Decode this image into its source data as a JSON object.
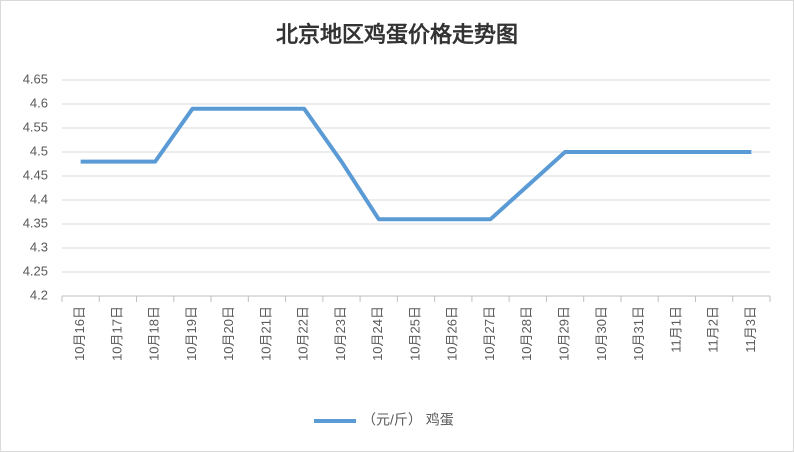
{
  "chart_data": {
    "type": "line",
    "title": "北京地区鸡蛋价格走势图",
    "categories": [
      "10月16日",
      "10月17日",
      "10月18日",
      "10月19日",
      "10月20日",
      "10月21日",
      "10月22日",
      "10月23日",
      "10月24日",
      "10月25日",
      "10月26日",
      "10月27日",
      "10月28日",
      "10月29日",
      "10月30日",
      "10月31日",
      "11月1日",
      "11月2日",
      "11月3日"
    ],
    "series": [
      {
        "name": "（元/斤） 鸡蛋",
        "color": "#5b9bd5",
        "values": [
          4.48,
          4.48,
          4.48,
          4.59,
          4.59,
          4.59,
          4.59,
          4.48,
          4.36,
          4.36,
          4.36,
          4.36,
          4.43,
          4.5,
          4.5,
          4.5,
          4.5,
          4.5,
          4.5
        ]
      }
    ],
    "ylim": [
      4.2,
      4.65
    ],
    "yticks": [
      4.2,
      4.25,
      4.3,
      4.35,
      4.4,
      4.45,
      4.5,
      4.55,
      4.6,
      4.65
    ],
    "grid": true,
    "legend": "bottom"
  }
}
